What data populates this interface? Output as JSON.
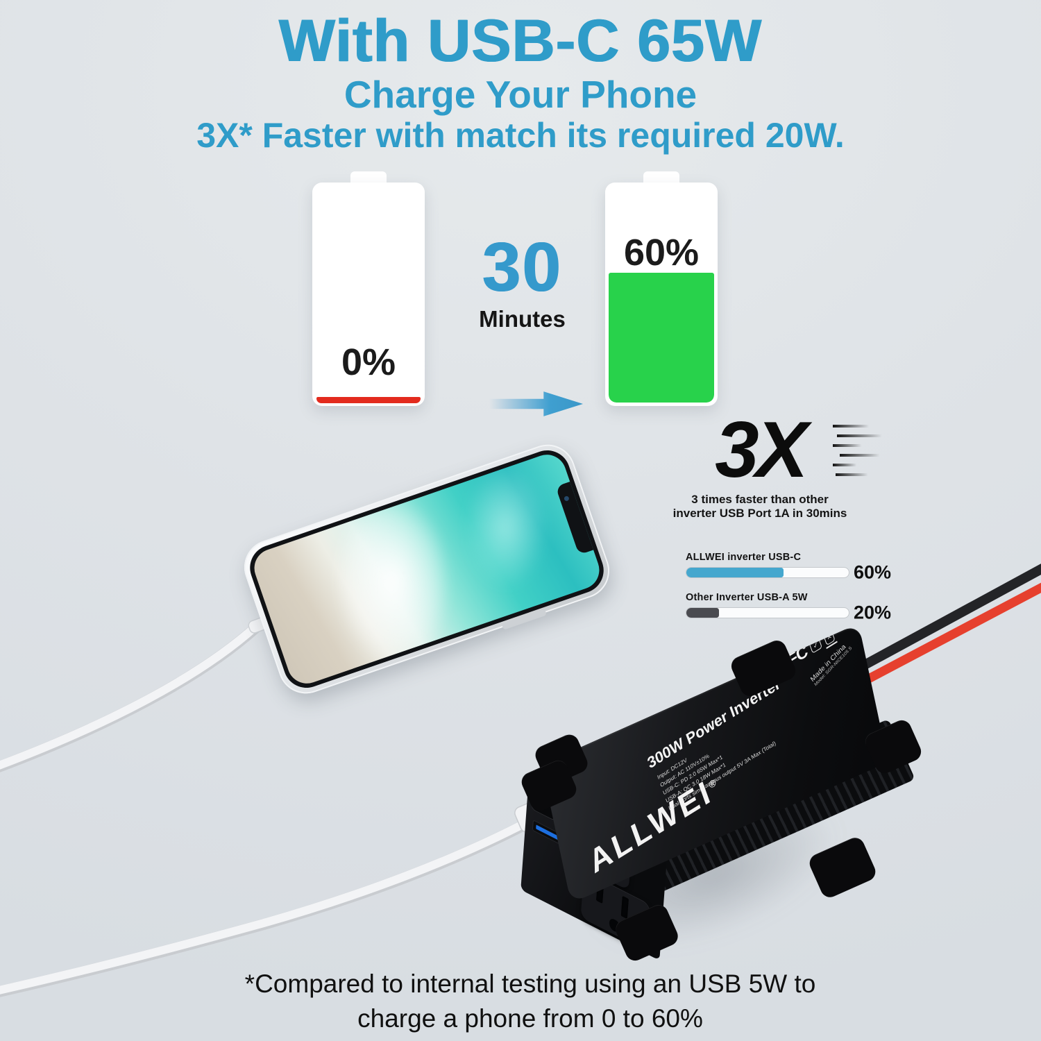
{
  "header": {
    "title": "With USB-C 65W",
    "subtitle": "Charge Your Phone",
    "tagline": "3X* Faster with match its required 20W."
  },
  "comparison": {
    "before": {
      "percent_label": "0%",
      "value": 0
    },
    "after": {
      "percent_label": "60%",
      "value": 60
    },
    "duration_value": "30",
    "duration_unit": "Minutes"
  },
  "claim": {
    "multiplier": "3X",
    "caption_line1": "3 times faster than other",
    "caption_line2": "inverter USB Port 1A in 30mins"
  },
  "chart_data": {
    "type": "bar",
    "orientation": "horizontal",
    "xlim": [
      0,
      100
    ],
    "grid": false,
    "legend_position": "none",
    "series": [
      {
        "name": "ALLWEI inverter USB-C",
        "value": 60,
        "value_label": "60%",
        "color": "#45a7ce"
      },
      {
        "name": "Other Inverter USB-A  5W",
        "value": 20,
        "value_label": "20%",
        "color": "#4a4b50"
      }
    ]
  },
  "product": {
    "brand": "ALLWEI",
    "brand_reg": "®",
    "name": "300W Power Inverter",
    "specs": [
      "Input: DC12V",
      "Output: AC 110V±10%",
      "USB-C: PD 2.0 65W Max*1",
      "USB-A: QC 3.0 18W Max*1",
      "Dual ports simultaneous output 5V 3A Max (Total)"
    ],
    "cert_ce": "CE",
    "cert_fcc": "FC",
    "origin": "Made in China",
    "model": "Model: SGR-NICE105 S"
  },
  "footnote": {
    "line1": "*Compared to internal testing using an USB 5W to",
    "line2": "charge a phone from 0 to 60%"
  },
  "colors": {
    "accent_blue": "#2f9cc9",
    "battery_green": "#28d24b",
    "battery_low_red": "#e32b1e",
    "bar_blue": "#45a7ce",
    "bar_gray": "#4a4b50",
    "wire_red": "#e6402e",
    "wire_black": "#232427"
  }
}
